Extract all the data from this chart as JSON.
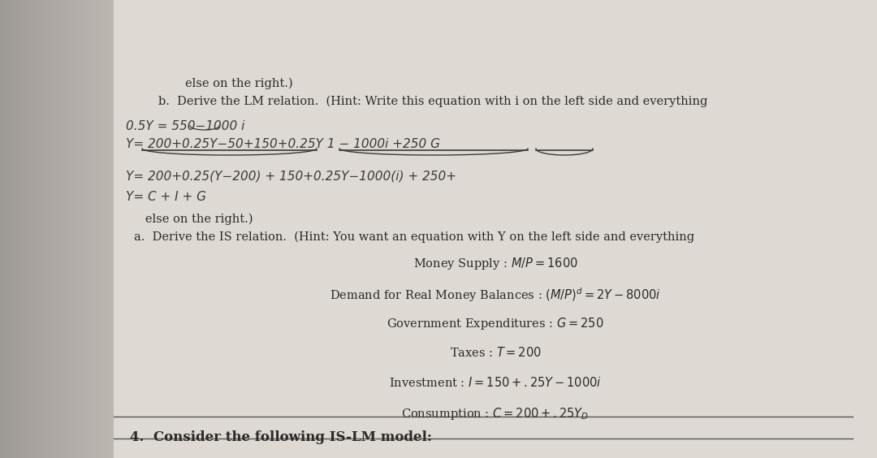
{
  "bg_left_color": "#b8b0a4",
  "bg_right_color": "#cec8be",
  "page_color": "#dedad2",
  "title_line": "4.  Consider the following IS-LM model:",
  "equations": [
    "Consumption : $C = 200 + .25Y_D$",
    "Investment : $I = 150 + .25Y - 1000i$",
    "Taxes : $T = 200$",
    "Government Expenditures : $G = 250$",
    "Demand for Real Money Balances : $(M/P)^d = 2Y - 8000i$",
    "Money Supply : $M/P = 1600$"
  ],
  "part_a_line1": "a.  Derive the IS relation.  (Hint: You want an equation with Y on the left side and everything",
  "part_a_line2": "   else on the right.)",
  "hand_line1": "Y= C + I + G",
  "hand_line2": "Y= 200+0.25(Y-200) + 150+0.25Y-1000(i) + 250+",
  "hand_line3": "Y= 200+0.25Y-50+150+0.25Y 1 - 1000i +250 G",
  "hand_line4": "0.5Y = 550-1000 i",
  "part_b_line1": "   b.  Derive the LM relation.  (Hint: Write this equation with i on the left side and everything",
  "part_b_line2": "      else on the right.)",
  "text_color": "#2a2a2a",
  "hand_color": "#3a3a3a",
  "line_color": "#555555",
  "font_size_title": 12,
  "font_size_eq": 10.5,
  "font_size_part": 10.5,
  "font_size_hand": 10
}
